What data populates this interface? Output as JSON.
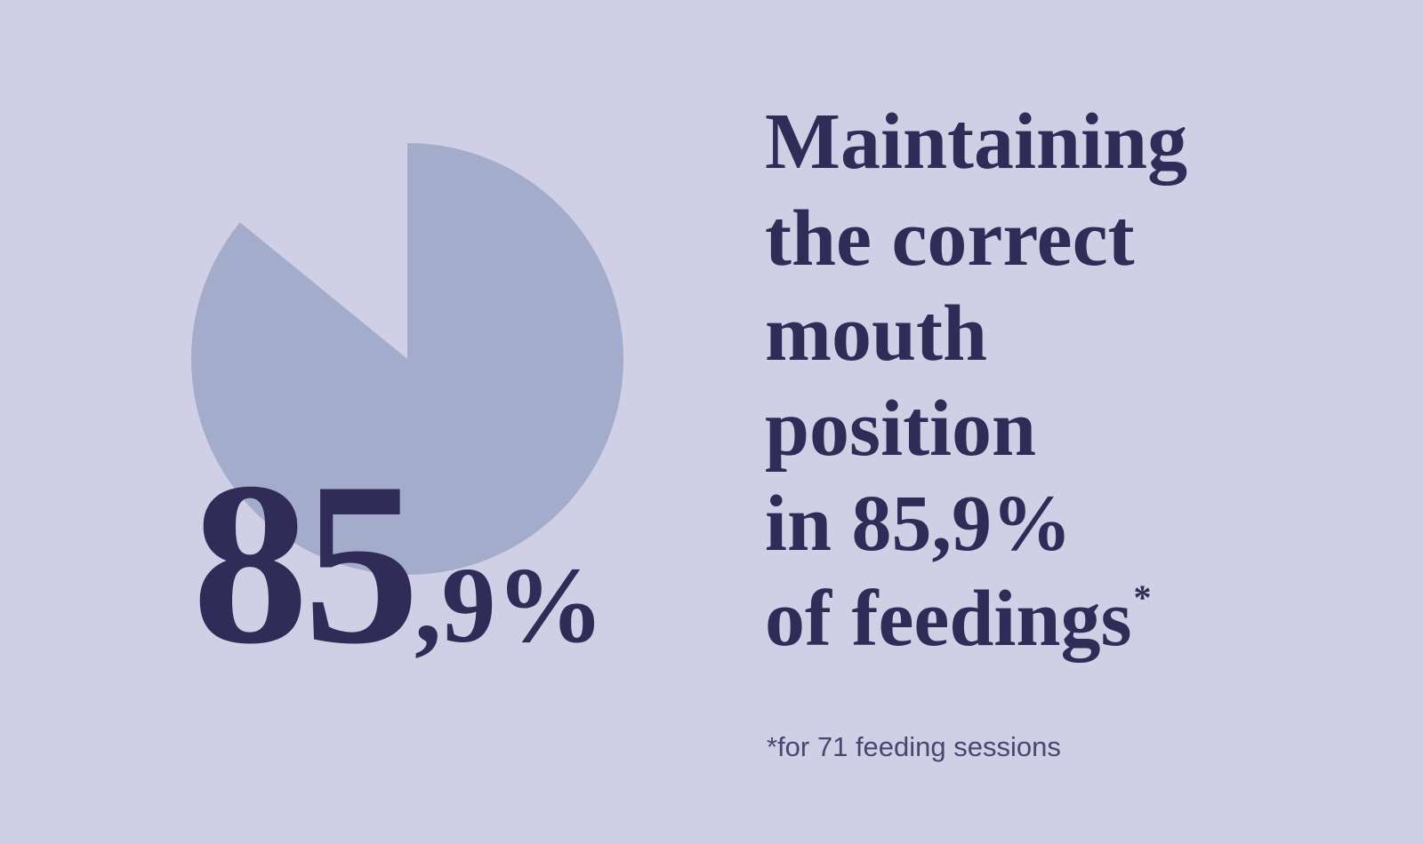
{
  "chart_data": {
    "type": "pie",
    "values": [
      85.9
    ],
    "value_labels": [
      "85,9%"
    ],
    "color": "#a3acca",
    "title_lines": [
      "Maintaining",
      "the correct",
      "mouth",
      "position",
      "in 85,9%",
      "of feedings"
    ],
    "title_mark": "*",
    "footnote": "*for 71 feeding sessions"
  }
}
